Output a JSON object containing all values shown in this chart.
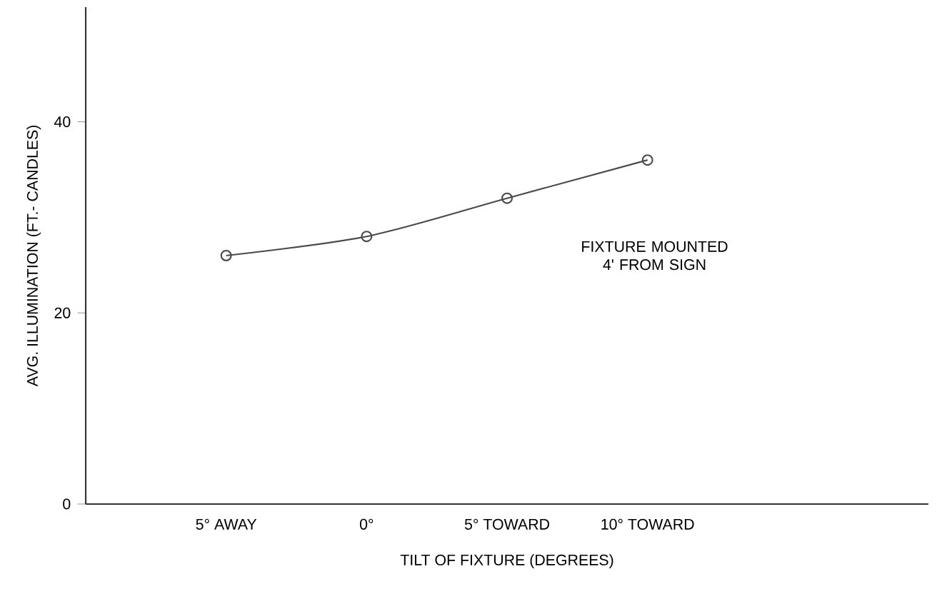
{
  "chart_data": {
    "type": "line",
    "xlabel": "TILT OF FIXTURE (DEGREES)",
    "ylabel": "AVG. ILLUMINATION (FT.- CANDLES)",
    "categories": [
      "5° AWAY",
      "0°",
      "5° TOWARD",
      "10° TOWARD"
    ],
    "values": [
      26,
      28,
      32,
      36
    ],
    "color": "#4a4a4a",
    "marker": "circle",
    "line_style": "solid",
    "ylim": [
      0,
      52
    ],
    "yticks": [
      0,
      20,
      40
    ],
    "annotations": [
      "FIXTURE MOUNTED 4' FROM SIGN"
    ]
  }
}
